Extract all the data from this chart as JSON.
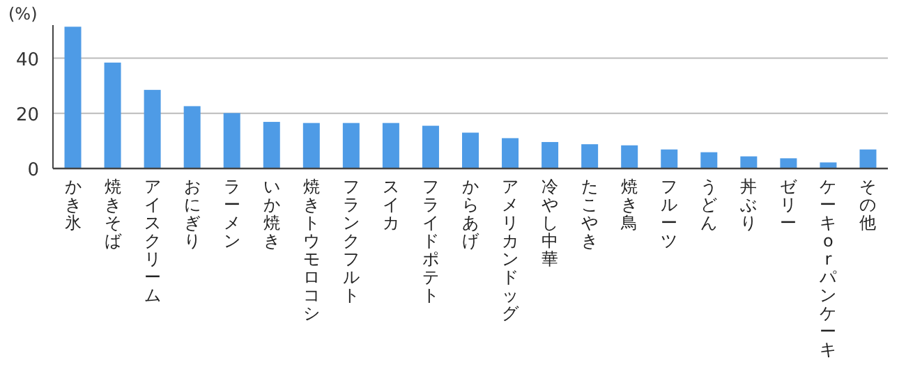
{
  "chart_data": {
    "type": "bar",
    "ylabel": "(%)",
    "categories": [
      "かき氷",
      "焼きそば",
      "アイスクリーム",
      "おにぎり",
      "ラーメン",
      "いか焼き",
      "焼きトウモロコシ",
      "フランクフルト",
      "スイカ",
      "フライドポテト",
      "からあげ",
      "アメリカンドッグ",
      "冷やし中華",
      "たこやき",
      "焼き鳥",
      "フルーツ",
      "うどん",
      "丼ぶり",
      "ゼリー",
      "ケーキorパンケーキ",
      "その他"
    ],
    "values": [
      51.4,
      38.4,
      28.5,
      22.6,
      20.1,
      16.9,
      16.5,
      16.5,
      16.5,
      15.5,
      13.0,
      11.0,
      9.6,
      8.8,
      8.4,
      6.9,
      5.9,
      4.4,
      3.7,
      2.2,
      6.9
    ],
    "color": "#4e9be6",
    "ylim": [
      0,
      52
    ],
    "yticks": [
      0,
      20,
      40
    ],
    "grid": "y"
  }
}
